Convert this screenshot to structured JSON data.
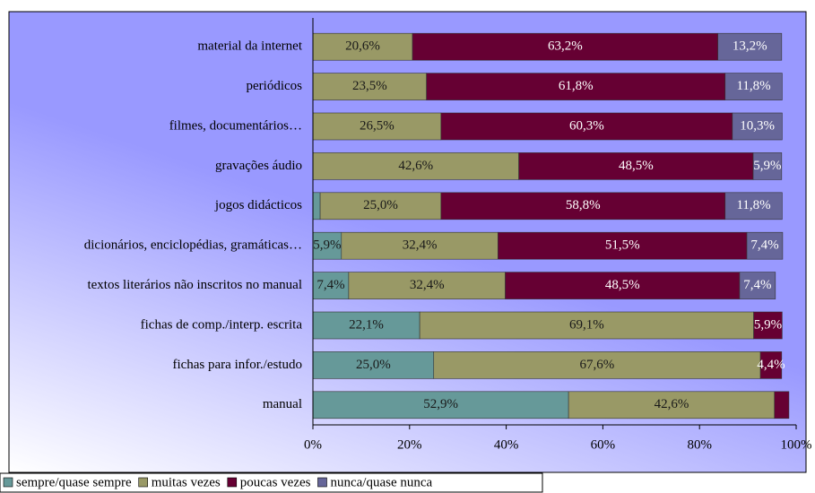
{
  "chart_data": {
    "type": "bar",
    "orientation": "horizontal",
    "stacked": true,
    "categories": [
      "material da internet",
      "periódicos",
      "filmes, documentários…",
      "gravações áudio",
      "jogos didácticos",
      "dicionários, enciclopédias, gramáticas…",
      "textos literários não inscritos no manual",
      "fichas de comp./interp. escrita",
      "fichas para infor./estudo",
      "manual"
    ],
    "series": [
      {
        "name": "sempre/quase sempre",
        "color": "#669999",
        "label_color": "#1a1a1a",
        "values": [
          0,
          0,
          0,
          0,
          1.5,
          5.9,
          7.4,
          22.1,
          25.0,
          52.9
        ],
        "value_labels": [
          null,
          null,
          null,
          null,
          null,
          "5,9%",
          "7,4%",
          "22,1%",
          "25,0%",
          "52,9%"
        ]
      },
      {
        "name": "muitas vezes",
        "color": "#999966",
        "label_color": "#1a1a1a",
        "values": [
          20.6,
          23.5,
          26.5,
          42.6,
          25.0,
          32.4,
          32.4,
          69.1,
          67.6,
          42.6
        ],
        "value_labels": [
          "20,6%",
          "23,5%",
          "26,5%",
          "42,6%",
          "25,0%",
          "32,4%",
          "32,4%",
          "69,1%",
          "67,6%",
          "42,6%"
        ]
      },
      {
        "name": "poucas vezes",
        "color": "#660033",
        "label_color": "#ffffff",
        "values": [
          63.2,
          61.8,
          60.3,
          48.5,
          58.8,
          51.5,
          48.5,
          5.9,
          4.4,
          3.0
        ],
        "value_labels": [
          "63,2%",
          "61,8%",
          "60,3%",
          "48,5%",
          "58,8%",
          "51,5%",
          "48,5%",
          "5,9%",
          "4,4%",
          null
        ]
      },
      {
        "name": "nunca/quase nunca",
        "color": "#666699",
        "label_color": "#ffffff",
        "values": [
          13.2,
          11.8,
          10.3,
          5.9,
          11.8,
          7.4,
          7.4,
          0,
          0,
          0
        ],
        "value_labels": [
          "13,2%",
          "11,8%",
          "10,3%",
          "5,9%",
          "11,8%",
          "7,4%",
          "7,4%",
          null,
          null,
          null
        ]
      }
    ],
    "xlim": [
      0,
      100
    ],
    "xticks": [
      {
        "value": 0,
        "label": "0%"
      },
      {
        "value": 20,
        "label": "20%"
      },
      {
        "value": 40,
        "label": "40%"
      },
      {
        "value": 60,
        "label": "60%"
      },
      {
        "value": 80,
        "label": "80%"
      },
      {
        "value": 100,
        "label": "100%"
      }
    ],
    "legend": "bottom-left"
  }
}
